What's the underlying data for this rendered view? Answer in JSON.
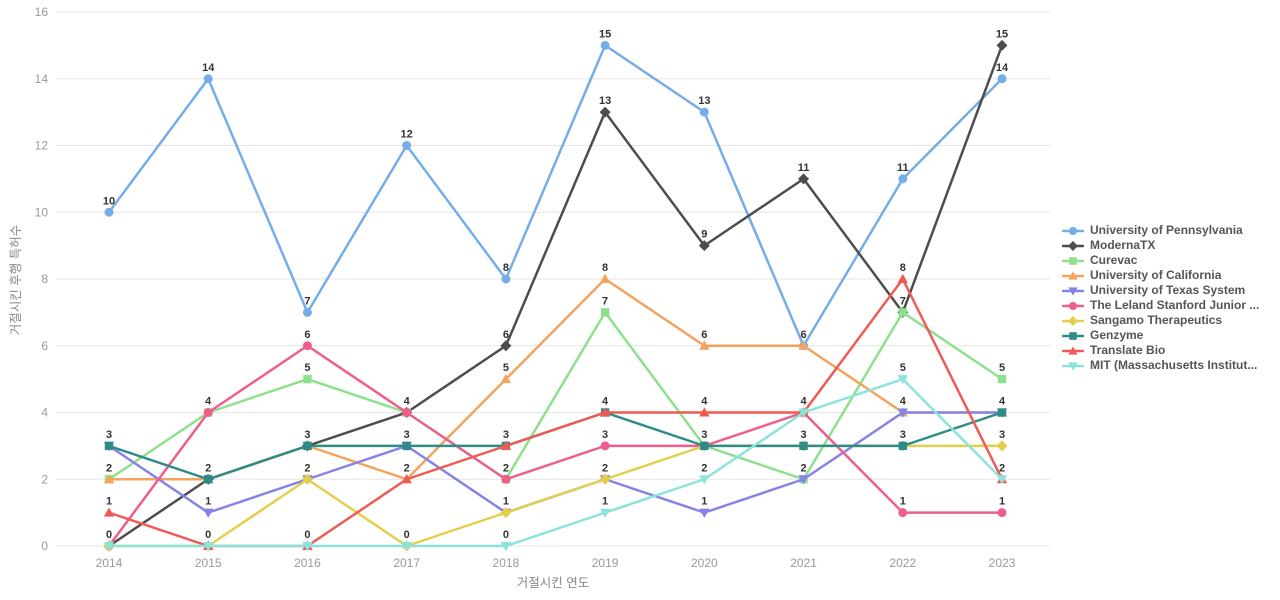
{
  "chart_data": {
    "type": "line",
    "x": [
      "2014",
      "2015",
      "2016",
      "2017",
      "2018",
      "2019",
      "2020",
      "2021",
      "2022",
      "2023"
    ],
    "xlabel": "거절시킨 연도",
    "ylabel": "거절시킨 후행 특허수",
    "ylim": [
      0,
      16
    ],
    "ytick_step": 2,
    "yticks": [
      "0",
      "2",
      "4",
      "6",
      "8",
      "10",
      "12",
      "14",
      "16"
    ],
    "grid": "horizontal",
    "legend_position": "right",
    "point_labels": true,
    "series": [
      {
        "name": "University of Pennsylvania",
        "color": "#74AEE8",
        "marker": "circle",
        "values": [
          10,
          14,
          7,
          12,
          8,
          15,
          13,
          6,
          11,
          14
        ]
      },
      {
        "name": "ModernaTX",
        "color": "#4D4D4D",
        "marker": "diamond",
        "values": [
          0,
          2,
          3,
          4,
          6,
          13,
          9,
          11,
          7,
          15
        ]
      },
      {
        "name": "Curevac",
        "color": "#8EE08C",
        "marker": "square",
        "values": [
          2,
          4,
          5,
          4,
          2,
          7,
          3,
          2,
          7,
          5
        ]
      },
      {
        "name": "University of California",
        "color": "#F5A35C",
        "marker": "triangle-up",
        "values": [
          2,
          2,
          3,
          2,
          5,
          8,
          6,
          6,
          4,
          4
        ]
      },
      {
        "name": "University of Texas System",
        "color": "#8584E6",
        "marker": "triangle-down",
        "values": [
          3,
          1,
          2,
          3,
          1,
          2,
          1,
          2,
          4,
          4
        ]
      },
      {
        "name": "The Leland Stanford Junior ...",
        "color": "#EF5D8C",
        "marker": "circle",
        "values": [
          0,
          4,
          6,
          4,
          2,
          3,
          3,
          4,
          1,
          1
        ]
      },
      {
        "name": "Sangamo Therapeutics",
        "color": "#E3CE4E",
        "marker": "diamond",
        "values": [
          0,
          0,
          2,
          0,
          1,
          2,
          3,
          3,
          3,
          3
        ]
      },
      {
        "name": "Genzyme",
        "color": "#2E8B88",
        "marker": "square",
        "values": [
          3,
          2,
          3,
          3,
          3,
          4,
          3,
          3,
          3,
          4
        ]
      },
      {
        "name": "Translate Bio",
        "color": "#F05A54",
        "marker": "triangle-up",
        "values": [
          1,
          0,
          0,
          2,
          3,
          4,
          4,
          4,
          8,
          2
        ]
      },
      {
        "name": "MIT (Massachusetts Institut...",
        "color": "#8AE4DC",
        "marker": "triangle-down",
        "values": [
          0,
          0,
          0,
          0,
          0,
          1,
          2,
          4,
          5,
          2
        ]
      }
    ]
  },
  "colors": {
    "grid": "#e6e6e6",
    "tick_text": "#999999",
    "axis_title_text": "#888888",
    "point_label_text": "#333333",
    "legend_text": "#555555",
    "background": "#ffffff"
  }
}
